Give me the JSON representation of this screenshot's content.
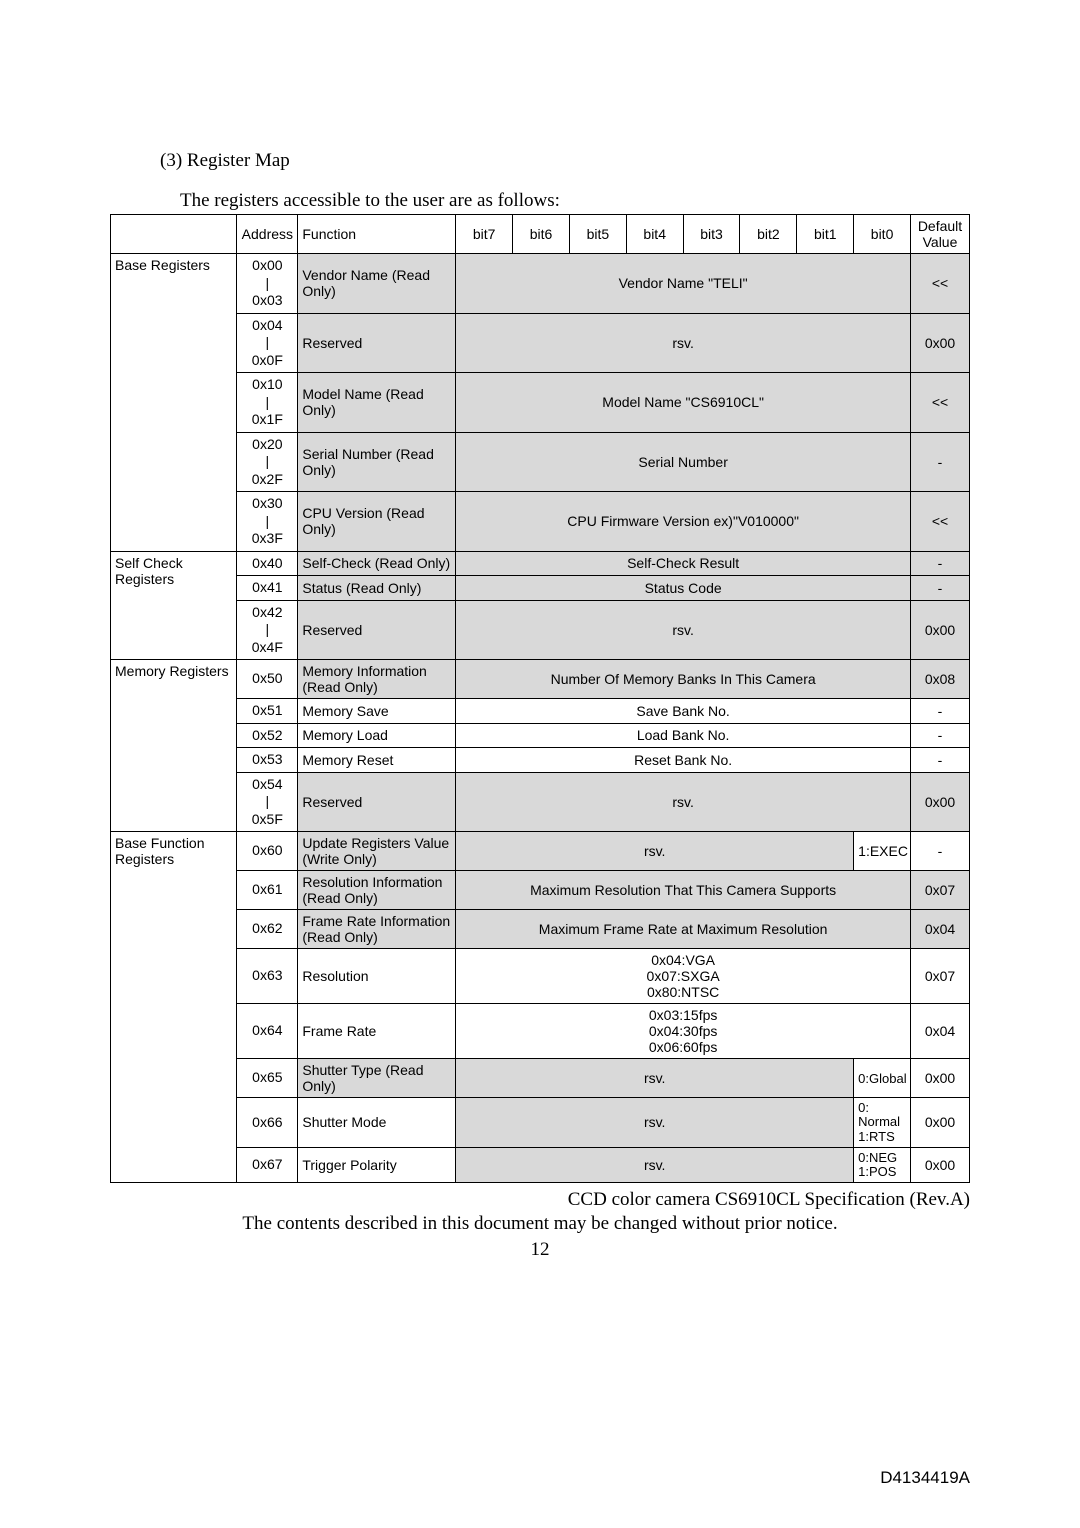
{
  "section_title": "(3)   Register Map",
  "intro": "The registers accessible to the user are as follows:",
  "headers": {
    "address": "Address",
    "function": "Function",
    "bit7": "bit7",
    "bit6": "bit6",
    "bit5": "bit5",
    "bit4": "bit4",
    "bit3": "bit3",
    "bit2": "bit2",
    "bit1": "bit1",
    "bit0": "bit0",
    "default": "Default Value"
  },
  "cat": {
    "base": "Base Registers",
    "selfcheck": "Self Check Registers",
    "memory": "Memory Registers",
    "basefunc": "Base Function Registers"
  },
  "rows": {
    "r00": {
      "addr_a": "0x00",
      "addr_b": "0x03",
      "func": "Vendor Name (Read Only)",
      "desc": "Vendor Name \"TELI\"",
      "def": "<<"
    },
    "r04": {
      "addr_a": "0x04",
      "addr_b": "0x0F",
      "func": "Reserved",
      "desc": "rsv.",
      "def": "0x00"
    },
    "r10": {
      "addr_a": "0x10",
      "addr_b": "0x1F",
      "func": "Model Name (Read Only)",
      "desc": "Model Name \"CS6910CL\"",
      "def": "<<"
    },
    "r20": {
      "addr_a": "0x20",
      "addr_b": "0x2F",
      "func": "Serial Number (Read Only)",
      "desc": "Serial Number",
      "def": "-"
    },
    "r30": {
      "addr_a": "0x30",
      "addr_b": "0x3F",
      "func": "CPU Version (Read Only)",
      "desc": "CPU Firmware Version ex)\"V010000\"",
      "def": "<<"
    },
    "r40": {
      "addr": "0x40",
      "func": "Self-Check (Read Only)",
      "desc": "Self-Check Result",
      "def": "-"
    },
    "r41": {
      "addr": "0x41",
      "func": "Status (Read Only)",
      "desc": "Status Code",
      "def": "-"
    },
    "r42": {
      "addr_a": "0x42",
      "addr_b": "0x4F",
      "func": "Reserved",
      "desc": "rsv.",
      "def": "0x00"
    },
    "r50": {
      "addr": "0x50",
      "func": "Memory Information (Read Only)",
      "desc": "Number Of Memory Banks In This Camera",
      "def": "0x08"
    },
    "r51": {
      "addr": "0x51",
      "func": "Memory Save",
      "desc": "Save Bank No.",
      "def": "-"
    },
    "r52": {
      "addr": "0x52",
      "func": "Memory Load",
      "desc": "Load Bank No.",
      "def": "-"
    },
    "r53": {
      "addr": "0x53",
      "func": "Memory Reset",
      "desc": "Reset Bank No.",
      "def": "-"
    },
    "r54": {
      "addr_a": "0x54",
      "addr_b": "0x5F",
      "func": "Reserved",
      "desc": "rsv.",
      "def": "0x00"
    },
    "r60": {
      "addr": "0x60",
      "func": "Update Registers Value (Write Only)",
      "desc": "rsv.",
      "bit0": "1:EXEC",
      "def": "-"
    },
    "r61": {
      "addr": "0x61",
      "func": "Resolution Information (Read Only)",
      "desc": "Maximum Resolution That This Camera Supports",
      "def": "0x07"
    },
    "r62": {
      "addr": "0x62",
      "func": "Frame Rate Information (Read Only)",
      "desc": "Maximum Frame Rate at Maximum Resolution",
      "def": "0x04"
    },
    "r63": {
      "addr": "0x63",
      "func": "Resolution",
      "desc": "0x04:VGA\n0x07:SXGA\n0x80:NTSC",
      "def": "0x07"
    },
    "r64": {
      "addr": "0x64",
      "func": "Frame Rate",
      "desc": "0x03:15fps\n0x04:30fps\n0x06:60fps",
      "def": "0x04"
    },
    "r65": {
      "addr": "0x65",
      "func": "Shutter Type (Read Only)",
      "desc": "rsv.",
      "bit0": "0:Global",
      "def": "0x00"
    },
    "r66": {
      "addr": "0x66",
      "func": "Shutter Mode",
      "desc": "rsv.",
      "bit0": "0: Normal 1:RTS",
      "def": "0x00"
    },
    "r67": {
      "addr": "0x67",
      "func": "Trigger Polarity",
      "desc": "rsv.",
      "bit0": "0:NEG 1:POS",
      "def": "0x00"
    }
  },
  "footer1": "CCD color camera CS6910CL Specification (Rev.A)",
  "footer2": "The contents described in this document may be changed without prior notice.",
  "pagenum": "12",
  "docnum": "D4134419A",
  "colors": {
    "grey": "#d9d9d9",
    "bg": "#ffffff",
    "text": "#000000",
    "border": "#000000"
  }
}
